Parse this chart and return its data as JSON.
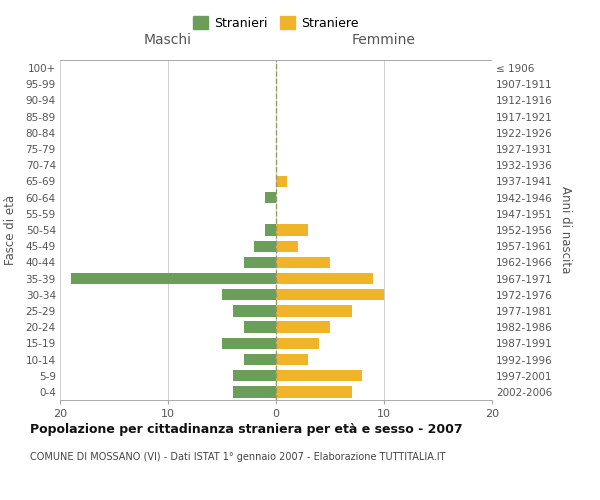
{
  "age_groups_bottom_to_top": [
    "0-4",
    "5-9",
    "10-14",
    "15-19",
    "20-24",
    "25-29",
    "30-34",
    "35-39",
    "40-44",
    "45-49",
    "50-54",
    "55-59",
    "60-64",
    "65-69",
    "70-74",
    "75-79",
    "80-84",
    "85-89",
    "90-94",
    "95-99",
    "100+"
  ],
  "birth_years_bottom_to_top": [
    "2002-2006",
    "1997-2001",
    "1992-1996",
    "1987-1991",
    "1982-1986",
    "1977-1981",
    "1972-1976",
    "1967-1971",
    "1962-1966",
    "1957-1961",
    "1952-1956",
    "1947-1951",
    "1942-1946",
    "1937-1941",
    "1932-1936",
    "1927-1931",
    "1922-1926",
    "1917-1921",
    "1912-1916",
    "1907-1911",
    "≤ 1906"
  ],
  "maschi_bottom_to_top": [
    4,
    4,
    3,
    5,
    3,
    4,
    5,
    19,
    3,
    2,
    1,
    0,
    1,
    0,
    0,
    0,
    0,
    0,
    0,
    0,
    0
  ],
  "femmine_bottom_to_top": [
    7,
    8,
    3,
    4,
    5,
    7,
    10,
    9,
    5,
    2,
    3,
    0,
    0,
    1,
    0,
    0,
    0,
    0,
    0,
    0,
    0
  ],
  "maschi_color": "#6a9e5a",
  "femmine_color": "#f0b429",
  "title": "Popolazione per cittadinanza straniera per età e sesso - 2007",
  "subtitle": "COMUNE DI MOSSANO (VI) - Dati ISTAT 1° gennaio 2007 - Elaborazione TUTTITALIA.IT",
  "ylabel_left": "Fasce di età",
  "ylabel_right": "Anni di nascita",
  "xlabel_left": "Maschi",
  "xlabel_right": "Femmine",
  "legend_stranieri": "Stranieri",
  "legend_straniere": "Straniere",
  "xlim": 20,
  "background_color": "#ffffff",
  "grid_color": "#d0d0d0"
}
